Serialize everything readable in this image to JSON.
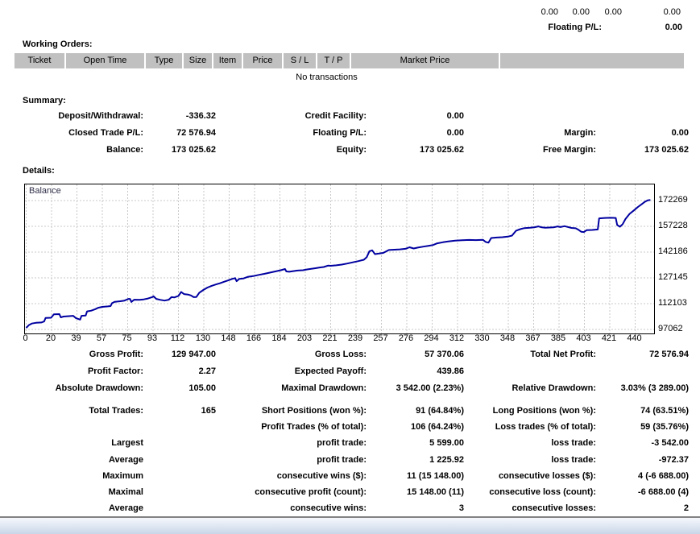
{
  "colors": {
    "table_header_bg": "#c0c0c0",
    "chart_line": "#0000a0",
    "chart_grid": "#c8c8c8",
    "chart_border": "#000000",
    "text": "#000000",
    "statusbar_top": "#f5f8fc",
    "statusbar_bottom": "#c9d6e9"
  },
  "top_strip": {
    "values": [
      "0.00",
      "0.00",
      "0.00",
      "0.00"
    ],
    "floating_label": "Floating P/L:",
    "floating_value": "0.00"
  },
  "working_orders": {
    "title": "Working Orders:",
    "columns": [
      "Ticket",
      "Open Time",
      "Type",
      "Size",
      "Item",
      "Price",
      "S / L",
      "T / P",
      "Market Price",
      ""
    ],
    "empty_message": "No transactions"
  },
  "summary": {
    "title": "Summary:",
    "rows": [
      [
        "Deposit/Withdrawal:",
        "-336.32",
        "Credit Facility:",
        "0.00",
        "",
        ""
      ],
      [
        "Closed Trade P/L:",
        "72 576.94",
        "Floating P/L:",
        "0.00",
        "Margin:",
        "0.00"
      ],
      [
        "Balance:",
        "173 025.62",
        "Equity:",
        "173 025.62",
        "Free Margin:",
        "173 025.62"
      ]
    ]
  },
  "details": {
    "title": "Details:"
  },
  "chart_data": {
    "type": "line",
    "title": "Balance",
    "legend_label": "Balance",
    "grid": "dashed",
    "y_axis_side": "right",
    "x_ticks": [
      0,
      20,
      39,
      57,
      75,
      93,
      112,
      130,
      148,
      166,
      184,
      203,
      221,
      239,
      257,
      276,
      294,
      312,
      330,
      348,
      367,
      385,
      403,
      421,
      440
    ],
    "y_ticks": [
      172269,
      157228,
      142186,
      127145,
      112103,
      97062
    ],
    "x_range": [
      0,
      453
    ],
    "series": [
      {
        "name": "Balance",
        "points": [
          [
            0,
            97900
          ],
          [
            2,
            99600
          ],
          [
            4,
            100500
          ],
          [
            7,
            100900
          ],
          [
            11,
            101100
          ],
          [
            13,
            101700
          ],
          [
            14,
            103800
          ],
          [
            18,
            103900
          ],
          [
            20,
            105900
          ],
          [
            24,
            106000
          ],
          [
            25,
            104100
          ],
          [
            27,
            104600
          ],
          [
            31,
            104800
          ],
          [
            34,
            105000
          ],
          [
            36,
            103600
          ],
          [
            39,
            102800
          ],
          [
            40,
            105000
          ],
          [
            43,
            105200
          ],
          [
            44,
            107600
          ],
          [
            47,
            108000
          ],
          [
            50,
            108900
          ],
          [
            52,
            109700
          ],
          [
            55,
            110200
          ],
          [
            59,
            110500
          ],
          [
            61,
            110700
          ],
          [
            62,
            112400
          ],
          [
            64,
            113200
          ],
          [
            68,
            113500
          ],
          [
            71,
            113900
          ],
          [
            74,
            114900
          ],
          [
            75,
            114900
          ],
          [
            76,
            113100
          ],
          [
            78,
            114400
          ],
          [
            82,
            114300
          ],
          [
            85,
            114600
          ],
          [
            88,
            115100
          ],
          [
            91,
            115900
          ],
          [
            92,
            116400
          ],
          [
            94,
            114900
          ],
          [
            97,
            114300
          ],
          [
            100,
            113900
          ],
          [
            103,
            114400
          ],
          [
            105,
            115900
          ],
          [
            107,
            115700
          ],
          [
            110,
            116600
          ],
          [
            112,
            118900
          ],
          [
            114,
            117700
          ],
          [
            117,
            117400
          ],
          [
            119,
            116900
          ],
          [
            121,
            115900
          ],
          [
            123,
            116000
          ],
          [
            125,
            118400
          ],
          [
            128,
            120100
          ],
          [
            131,
            121500
          ],
          [
            134,
            122500
          ],
          [
            137,
            123300
          ],
          [
            140,
            124000
          ],
          [
            143,
            124900
          ],
          [
            146,
            125700
          ],
          [
            149,
            126600
          ],
          [
            151,
            127000
          ],
          [
            152,
            125200
          ],
          [
            154,
            126600
          ],
          [
            157,
            126800
          ],
          [
            160,
            127700
          ],
          [
            164,
            128200
          ],
          [
            168,
            128900
          ],
          [
            172,
            129500
          ],
          [
            176,
            130200
          ],
          [
            180,
            130900
          ],
          [
            184,
            131600
          ],
          [
            187,
            132300
          ],
          [
            188,
            130900
          ],
          [
            190,
            130700
          ],
          [
            193,
            131100
          ],
          [
            196,
            131400
          ],
          [
            200,
            131600
          ],
          [
            203,
            132100
          ],
          [
            206,
            132400
          ],
          [
            209,
            132800
          ],
          [
            212,
            133200
          ],
          [
            215,
            133500
          ],
          [
            218,
            134300
          ],
          [
            220,
            134200
          ],
          [
            224,
            134500
          ],
          [
            228,
            134900
          ],
          [
            232,
            135500
          ],
          [
            236,
            136200
          ],
          [
            240,
            136900
          ],
          [
            244,
            137700
          ],
          [
            246,
            139200
          ],
          [
            248,
            142700
          ],
          [
            250,
            143200
          ],
          [
            252,
            141000
          ],
          [
            255,
            141400
          ],
          [
            258,
            141700
          ],
          [
            262,
            143400
          ],
          [
            266,
            143600
          ],
          [
            270,
            143800
          ],
          [
            274,
            144100
          ],
          [
            277,
            145000
          ],
          [
            280,
            144300
          ],
          [
            283,
            144800
          ],
          [
            287,
            145400
          ],
          [
            291,
            145900
          ],
          [
            294,
            146300
          ],
          [
            297,
            147300
          ],
          [
            301,
            147900
          ],
          [
            305,
            148400
          ],
          [
            310,
            148900
          ],
          [
            315,
            149100
          ],
          [
            320,
            149300
          ],
          [
            325,
            149200
          ],
          [
            330,
            149400
          ],
          [
            332,
            148100
          ],
          [
            334,
            147700
          ],
          [
            336,
            150400
          ],
          [
            340,
            150700
          ],
          [
            344,
            150900
          ],
          [
            348,
            151200
          ],
          [
            351,
            151800
          ],
          [
            354,
            154700
          ],
          [
            357,
            155600
          ],
          [
            360,
            156200
          ],
          [
            364,
            156400
          ],
          [
            367,
            156600
          ],
          [
            370,
            157200
          ],
          [
            372,
            156700
          ],
          [
            375,
            156400
          ],
          [
            378,
            156500
          ],
          [
            381,
            156600
          ],
          [
            384,
            157200
          ],
          [
            386,
            156800
          ],
          [
            389,
            157300
          ],
          [
            391,
            156900
          ],
          [
            394,
            156300
          ],
          [
            397,
            156100
          ],
          [
            399,
            155200
          ],
          [
            401,
            154100
          ],
          [
            403,
            153900
          ],
          [
            405,
            155000
          ],
          [
            409,
            155100
          ],
          [
            413,
            155400
          ],
          [
            414,
            161900
          ],
          [
            418,
            162100
          ],
          [
            422,
            162200
          ],
          [
            426,
            162100
          ],
          [
            427,
            158000
          ],
          [
            429,
            157000
          ],
          [
            431,
            158500
          ],
          [
            433,
            161500
          ],
          [
            436,
            164500
          ],
          [
            439,
            166500
          ],
          [
            442,
            168500
          ],
          [
            445,
            170300
          ],
          [
            447,
            171500
          ],
          [
            449,
            172400
          ],
          [
            451,
            172600
          ]
        ]
      }
    ]
  },
  "stats": {
    "rows_top": [
      [
        "Gross Profit:",
        "129 947.00",
        "Gross Loss:",
        "57 370.06",
        "Total Net Profit:",
        "72 576.94"
      ],
      [
        "Profit Factor:",
        "2.27",
        "Expected Payoff:",
        "439.86",
        "",
        ""
      ],
      [
        "Absolute Drawdown:",
        "105.00",
        "Maximal Drawdown:",
        "3 542.00 (2.23%)",
        "Relative Drawdown:",
        "3.03% (3 289.00)"
      ]
    ],
    "rows_bottom": [
      [
        "Total Trades:",
        "165",
        "Short Positions (won %):",
        "91 (64.84%)",
        "Long Positions (won %):",
        "74 (63.51%)"
      ],
      [
        "",
        "",
        "Profit Trades (% of total):",
        "106 (64.24%)",
        "Loss trades (% of total):",
        "59 (35.76%)"
      ],
      [
        "Largest",
        "",
        "profit trade:",
        "5 599.00",
        "loss trade:",
        "-3 542.00"
      ],
      [
        "Average",
        "",
        "profit trade:",
        "1 225.92",
        "loss trade:",
        "-972.37"
      ],
      [
        "Maximum",
        "",
        "consecutive wins ($):",
        "11 (15 148.00)",
        "consecutive losses ($):",
        "4 (-6 688.00)"
      ],
      [
        "Maximal",
        "",
        "consecutive profit (count):",
        "15 148.00 (11)",
        "consecutive loss (count):",
        "-6 688.00 (4)"
      ],
      [
        "Average",
        "",
        "consecutive wins:",
        "3",
        "consecutive losses:",
        "2"
      ]
    ]
  }
}
